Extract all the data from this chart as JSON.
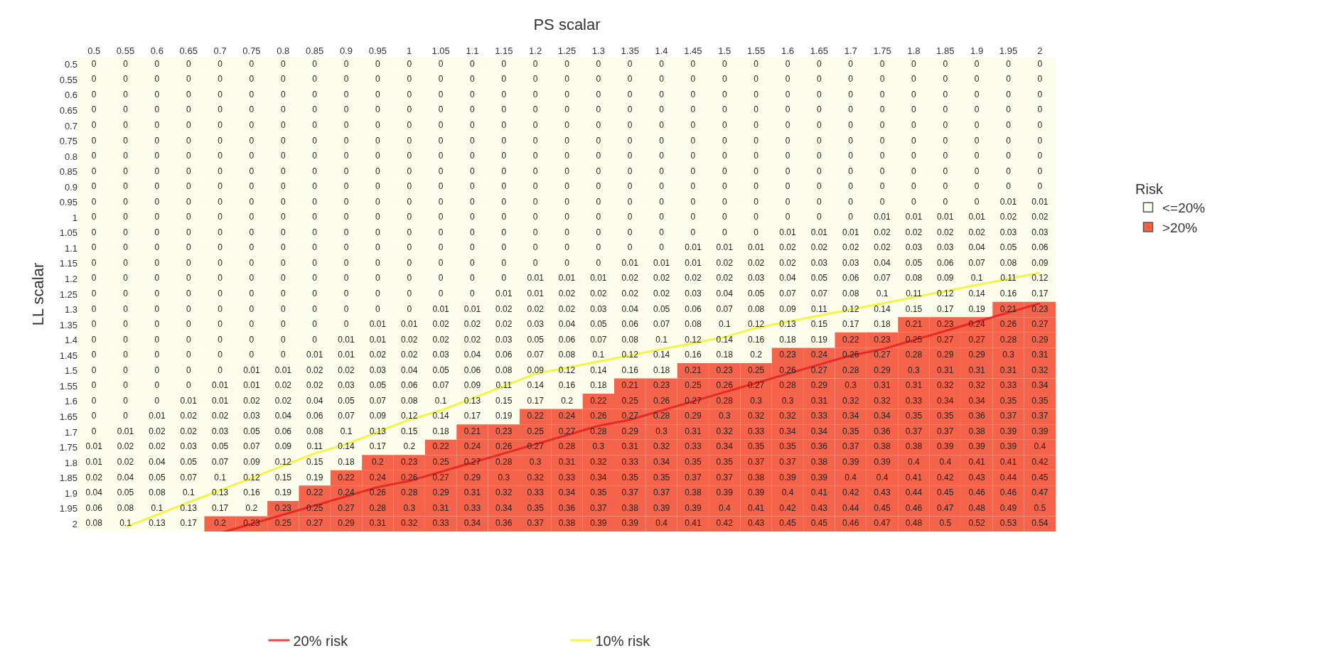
{
  "chart_data": {
    "type": "heatmap",
    "xlabel": "PS scalar",
    "ylabel": "LL scalar",
    "legend_title": "Risk",
    "legend": "bottom",
    "data_labels": true,
    "categories": [
      "0.5",
      "0.55",
      "0.6",
      "0.65",
      "0.7",
      "0.75",
      "0.8",
      "0.85",
      "0.9",
      "0.95",
      "1",
      "1.05",
      "1.1",
      "1.15",
      "1.2",
      "1.25",
      "1.3",
      "1.35",
      "1.4",
      "1.45",
      "1.5",
      "1.55",
      "1.6",
      "1.65",
      "1.7",
      "1.75",
      "1.8",
      "1.85",
      "1.9",
      "1.95",
      "2"
    ],
    "y_categories": [
      "0.5",
      "0.55",
      "0.6",
      "0.65",
      "0.7",
      "0.75",
      "0.8",
      "0.85",
      "0.9",
      "0.95",
      "1",
      "1.05",
      "1.1",
      "1.15",
      "1.2",
      "1.25",
      "1.3",
      "1.35",
      "1.4",
      "1.45",
      "1.5",
      "1.55",
      "1.6",
      "1.65",
      "1.7",
      "1.75",
      "1.8",
      "1.85",
      "1.9",
      "1.95",
      "2"
    ],
    "cells": [
      [
        0,
        0,
        0,
        0,
        0,
        0,
        0,
        0,
        0,
        0,
        0,
        0,
        0,
        0,
        0,
        0,
        0,
        0,
        0,
        0,
        0,
        0,
        0,
        0,
        0,
        0,
        0,
        0,
        0,
        0,
        0
      ],
      [
        0,
        0,
        0,
        0,
        0,
        0,
        0,
        0,
        0,
        0,
        0,
        0,
        0,
        0,
        0,
        0,
        0,
        0,
        0,
        0,
        0,
        0,
        0,
        0,
        0,
        0,
        0,
        0,
        0,
        0,
        0
      ],
      [
        0,
        0,
        0,
        0,
        0,
        0,
        0,
        0,
        0,
        0,
        0,
        0,
        0,
        0,
        0,
        0,
        0,
        0,
        0,
        0,
        0,
        0,
        0,
        0,
        0,
        0,
        0,
        0,
        0,
        0,
        0
      ],
      [
        0,
        0,
        0,
        0,
        0,
        0,
        0,
        0,
        0,
        0,
        0,
        0,
        0,
        0,
        0,
        0,
        0,
        0,
        0,
        0,
        0,
        0,
        0,
        0,
        0,
        0,
        0,
        0,
        0,
        0,
        0
      ],
      [
        0,
        0,
        0,
        0,
        0,
        0,
        0,
        0,
        0,
        0,
        0,
        0,
        0,
        0,
        0,
        0,
        0,
        0,
        0,
        0,
        0,
        0,
        0,
        0,
        0,
        0,
        0,
        0,
        0,
        0,
        0
      ],
      [
        0,
        0,
        0,
        0,
        0,
        0,
        0,
        0,
        0,
        0,
        0,
        0,
        0,
        0,
        0,
        0,
        0,
        0,
        0,
        0,
        0,
        0,
        0,
        0,
        0,
        0,
        0,
        0,
        0,
        0,
        0
      ],
      [
        0,
        0,
        0,
        0,
        0,
        0,
        0,
        0,
        0,
        0,
        0,
        0,
        0,
        0,
        0,
        0,
        0,
        0,
        0,
        0,
        0,
        0,
        0,
        0,
        0,
        0,
        0,
        0,
        0,
        0,
        0
      ],
      [
        0,
        0,
        0,
        0,
        0,
        0,
        0,
        0,
        0,
        0,
        0,
        0,
        0,
        0,
        0,
        0,
        0,
        0,
        0,
        0,
        0,
        0,
        0,
        0,
        0,
        0,
        0,
        0,
        0,
        0,
        0
      ],
      [
        0,
        0,
        0,
        0,
        0,
        0,
        0,
        0,
        0,
        0,
        0,
        0,
        0,
        0,
        0,
        0,
        0,
        0,
        0,
        0,
        0,
        0,
        0,
        0,
        0,
        0,
        0,
        0,
        0,
        0,
        0
      ],
      [
        0,
        0,
        0,
        0,
        0,
        0,
        0,
        0,
        0,
        0,
        0,
        0,
        0,
        0,
        0,
        0,
        0,
        0,
        0,
        0,
        0,
        0,
        0,
        0,
        0,
        0,
        0,
        0,
        0,
        0.01,
        0.01
      ],
      [
        0,
        0,
        0,
        0,
        0,
        0,
        0,
        0,
        0,
        0,
        0,
        0,
        0,
        0,
        0,
        0,
        0,
        0,
        0,
        0,
        0,
        0,
        0,
        0,
        0,
        0.01,
        0.01,
        0.01,
        0.01,
        0.02,
        0.02
      ],
      [
        0,
        0,
        0,
        0,
        0,
        0,
        0,
        0,
        0,
        0,
        0,
        0,
        0,
        0,
        0,
        0,
        0,
        0,
        0,
        0,
        0,
        0,
        0.01,
        0.01,
        0.01,
        0.02,
        0.02,
        0.02,
        0.02,
        0.03,
        0.03
      ],
      [
        0,
        0,
        0,
        0,
        0,
        0,
        0,
        0,
        0,
        0,
        0,
        0,
        0,
        0,
        0,
        0,
        0,
        0,
        0,
        0.01,
        0.01,
        0.01,
        0.02,
        0.02,
        0.02,
        0.02,
        0.03,
        0.03,
        0.04,
        0.05,
        0.06
      ],
      [
        0,
        0,
        0,
        0,
        0,
        0,
        0,
        0,
        0,
        0,
        0,
        0,
        0,
        0,
        0,
        0,
        0,
        0.01,
        0.01,
        0.01,
        0.02,
        0.02,
        0.02,
        0.03,
        0.03,
        0.04,
        0.05,
        0.06,
        0.07,
        0.08,
        0.09
      ],
      [
        0,
        0,
        0,
        0,
        0,
        0,
        0,
        0,
        0,
        0,
        0,
        0,
        0,
        0,
        0.01,
        0.01,
        0.01,
        0.02,
        0.02,
        0.02,
        0.02,
        0.03,
        0.04,
        0.05,
        0.06,
        0.07,
        0.08,
        0.09,
        0.1,
        0.11,
        0.12
      ],
      [
        0,
        0,
        0,
        0,
        0,
        0,
        0,
        0,
        0,
        0,
        0,
        0,
        0,
        0.01,
        0.01,
        0.02,
        0.02,
        0.02,
        0.02,
        0.03,
        0.04,
        0.05,
        0.07,
        0.07,
        0.08,
        0.1,
        0.11,
        0.12,
        0.14,
        0.16,
        0.17
      ],
      [
        0,
        0,
        0,
        0,
        0,
        0,
        0,
        0,
        0,
        0,
        0,
        0.01,
        0.01,
        0.02,
        0.02,
        0.02,
        0.03,
        0.04,
        0.05,
        0.06,
        0.07,
        0.08,
        0.09,
        0.11,
        0.12,
        0.14,
        0.15,
        0.17,
        0.19,
        0.21,
        0.23
      ],
      [
        0,
        0,
        0,
        0,
        0,
        0,
        0,
        0,
        0,
        0.01,
        0.01,
        0.02,
        0.02,
        0.02,
        0.03,
        0.04,
        0.05,
        0.06,
        0.07,
        0.08,
        0.1,
        0.12,
        0.13,
        0.15,
        0.17,
        0.18,
        0.21,
        0.23,
        0.24,
        0.26,
        0.27
      ],
      [
        0,
        0,
        0,
        0,
        0,
        0,
        0,
        0,
        0.01,
        0.01,
        0.02,
        0.02,
        0.02,
        0.03,
        0.05,
        0.06,
        0.07,
        0.08,
        0.1,
        0.12,
        0.14,
        0.16,
        0.18,
        0.19,
        0.22,
        0.23,
        0.25,
        0.27,
        0.27,
        0.28,
        0.29
      ],
      [
        0,
        0,
        0,
        0,
        0,
        0,
        0,
        0.01,
        0.01,
        0.02,
        0.02,
        0.03,
        0.04,
        0.06,
        0.07,
        0.08,
        0.1,
        0.12,
        0.14,
        0.16,
        0.18,
        0.2,
        0.23,
        0.24,
        0.26,
        0.27,
        0.28,
        0.29,
        0.29,
        0.3,
        0.31
      ],
      [
        0,
        0,
        0,
        0,
        0,
        0.01,
        0.01,
        0.02,
        0.02,
        0.03,
        0.04,
        0.05,
        0.06,
        0.08,
        0.09,
        0.12,
        0.14,
        0.16,
        0.18,
        0.21,
        0.23,
        0.25,
        0.26,
        0.27,
        0.28,
        0.29,
        0.3,
        0.31,
        0.31,
        0.31,
        0.32
      ],
      [
        0,
        0,
        0,
        0,
        0.01,
        0.01,
        0.02,
        0.02,
        0.03,
        0.05,
        0.06,
        0.07,
        0.09,
        0.11,
        0.14,
        0.16,
        0.18,
        0.21,
        0.23,
        0.25,
        0.26,
        0.27,
        0.28,
        0.29,
        0.3,
        0.31,
        0.31,
        0.32,
        0.32,
        0.33,
        0.34
      ],
      [
        0,
        0,
        0,
        0.01,
        0.01,
        0.02,
        0.02,
        0.04,
        0.05,
        0.07,
        0.08,
        0.1,
        0.13,
        0.15,
        0.17,
        0.2,
        0.22,
        0.25,
        0.26,
        0.27,
        0.28,
        0.3,
        0.3,
        0.31,
        0.32,
        0.32,
        0.33,
        0.34,
        0.34,
        0.35,
        0.35
      ],
      [
        0,
        0,
        0.01,
        0.02,
        0.02,
        0.03,
        0.04,
        0.06,
        0.07,
        0.09,
        0.12,
        0.14,
        0.17,
        0.19,
        0.22,
        0.24,
        0.26,
        0.27,
        0.28,
        0.29,
        0.3,
        0.32,
        0.32,
        0.33,
        0.34,
        0.34,
        0.35,
        0.35,
        0.36,
        0.37,
        0.37
      ],
      [
        0,
        0.01,
        0.02,
        0.02,
        0.03,
        0.05,
        0.06,
        0.08,
        0.1,
        0.13,
        0.15,
        0.18,
        0.21,
        0.23,
        0.25,
        0.27,
        0.28,
        0.29,
        0.3,
        0.31,
        0.32,
        0.33,
        0.34,
        0.34,
        0.35,
        0.36,
        0.37,
        0.37,
        0.38,
        0.39,
        0.39
      ],
      [
        0.01,
        0.02,
        0.02,
        0.03,
        0.05,
        0.07,
        0.09,
        0.11,
        0.14,
        0.17,
        0.2,
        0.22,
        0.24,
        0.26,
        0.27,
        0.28,
        0.3,
        0.31,
        0.32,
        0.33,
        0.34,
        0.35,
        0.35,
        0.36,
        0.37,
        0.38,
        0.38,
        0.39,
        0.39,
        0.39,
        0.4
      ],
      [
        0.01,
        0.02,
        0.04,
        0.05,
        0.07,
        0.09,
        0.12,
        0.15,
        0.18,
        0.2,
        0.23,
        0.25,
        0.27,
        0.28,
        0.3,
        0.31,
        0.32,
        0.33,
        0.34,
        0.35,
        0.35,
        0.37,
        0.37,
        0.38,
        0.39,
        0.39,
        0.4,
        0.4,
        0.41,
        0.41,
        0.42
      ],
      [
        0.02,
        0.04,
        0.05,
        0.07,
        0.1,
        0.12,
        0.15,
        0.19,
        0.22,
        0.24,
        0.26,
        0.27,
        0.29,
        0.3,
        0.32,
        0.33,
        0.34,
        0.35,
        0.35,
        0.37,
        0.37,
        0.38,
        0.39,
        0.39,
        0.4,
        0.4,
        0.41,
        0.42,
        0.43,
        0.44,
        0.45
      ],
      [
        0.04,
        0.05,
        0.08,
        0.1,
        0.13,
        0.16,
        0.19,
        0.22,
        0.24,
        0.26,
        0.28,
        0.29,
        0.31,
        0.32,
        0.33,
        0.34,
        0.35,
        0.37,
        0.37,
        0.38,
        0.39,
        0.39,
        0.4,
        0.41,
        0.42,
        0.43,
        0.44,
        0.45,
        0.46,
        0.46,
        0.47
      ],
      [
        0.06,
        0.08,
        0.1,
        0.13,
        0.17,
        0.2,
        0.23,
        0.25,
        0.27,
        0.28,
        0.3,
        0.31,
        0.33,
        0.34,
        0.35,
        0.36,
        0.37,
        0.38,
        0.39,
        0.39,
        0.4,
        0.41,
        0.42,
        0.43,
        0.44,
        0.45,
        0.46,
        0.47,
        0.48,
        0.49,
        0.5
      ],
      [
        0.08,
        0.1,
        0.13,
        0.17,
        0.2,
        0.23,
        0.25,
        0.27,
        0.29,
        0.31,
        0.32,
        0.33,
        0.34,
        0.36,
        0.37,
        0.38,
        0.39,
        0.39,
        0.4,
        0.41,
        0.42,
        0.43,
        0.45,
        0.45,
        0.46,
        0.47,
        0.48,
        0.5,
        0.52,
        0.53,
        0.54
      ]
    ],
    "colors": [
      [
        "#fdfdeb",
        "#fdfdeb",
        "#fdfdeb",
        "#fdfdeb",
        "#fdfdeb",
        "#fdfdeb",
        "#fdfdeb",
        "#fdfdeb",
        "#fdfdeb",
        "#fdfdeb",
        "#fdfdeb",
        "#fdfdeb",
        "#fdfdeb",
        "#fdfdeb",
        "#fdfdeb",
        "#fdfdeb",
        "#fdfdeb",
        "#fdfdeb",
        "#fdfdeb",
        "#fdfdeb",
        "#fdfdeb",
        "#fdfdeb",
        "#fdfdeb",
        "#fdfdeb",
        "#fdfdeb",
        "#fdfdeb",
        "#fdfdeb",
        "#fdfdeb",
        "#fdfdeb",
        "#fdfdeb",
        "#fdfdeb"
      ],
      [
        "#fdfdeb",
        "#fdfdeb",
        "#fdfdeb",
        "#fdfdeb",
        "#fdfdeb",
        "#fdfdeb",
        "#fdfdeb",
        "#fdfdeb",
        "#fdfdeb",
        "#fdfdeb",
        "#fdfdeb",
        "#fdfdeb",
        "#fdfdeb",
        "#fdfdeb",
        "#fdfdeb",
        "#fdfdeb",
        "#fdfdeb",
        "#fdfdeb",
        "#fdfdeb",
        "#fdfdeb",
        "#fdfdeb",
        "#fdfdeb",
        "#fdfdeb",
        "#fdfdeb",
        "#fdfdeb",
        "#fdfdeb",
        "#fdfdeb",
        "#fdfdeb",
        "#fdfdeb",
        "#fdfdeb",
        "#fdfdeb"
      ],
      [
        "#fdfdeb",
        "#fdfdeb",
        "#fdfdeb",
        "#fdfdeb",
        "#fdfdeb",
        "#fdfdeb",
        "#fdfdeb",
        "#fdfdeb",
        "#fdfdeb",
        "#fdfdeb",
        "#fdfdeb",
        "#fdfdeb",
        "#fdfdeb",
        "#fdfdeb",
        "#fdfdeb",
        "#fdfdeb",
        "#fdfdeb",
        "#fdfdeb",
        "#fdfdeb",
        "#fdfdeb",
        "#fdfdeb",
        "#fdfdeb",
        "#fdfdeb",
        "#fdfdeb",
        "#fdfdeb",
        "#fdfdeb",
        "#fdfdeb",
        "#fdfdeb",
        "#fdfdeb",
        "#fdfdeb",
        "#fdfdeb"
      ],
      [
        "#fdfdeb",
        "#fdfdeb",
        "#fdfdeb",
        "#fdfdeb",
        "#fdfdeb",
        "#fdfdeb",
        "#fdfdeb",
        "#fdfdeb",
        "#fdfdeb",
        "#fdfdeb",
        "#fdfdeb",
        "#fdfdeb",
        "#fdfdeb",
        "#fdfdeb",
        "#fdfdeb",
        "#fdfdeb",
        "#fdfdeb",
        "#fdfdeb",
        "#fdfdeb",
        "#fdfdeb",
        "#fdfdeb",
        "#fdfdeb",
        "#fdfdeb",
        "#fdfdeb",
        "#fdfdeb",
        "#fdfdeb",
        "#fdfdeb",
        "#fdfdeb",
        "#fdfdeb",
        "#fdfdeb",
        "#fdfdeb"
      ],
      [
        "#fdfdeb",
        "#fdfdeb",
        "#fdfdeb",
        "#fdfdeb",
        "#fdfdeb",
        "#fdfdeb",
        "#fdfdeb",
        "#fdfdeb",
        "#fdfdeb",
        "#fdfdeb",
        "#fdfdeb",
        "#fdfdeb",
        "#fdfdeb",
        "#fdfdeb",
        "#fdfdeb",
        "#fdfdeb",
        "#fdfdeb",
        "#fdfdeb",
        "#fdfdeb",
        "#fdfdeb",
        "#fdfdeb",
        "#fdfdeb",
        "#fdfdeb",
        "#fdfdeb",
        "#fdfdeb",
        "#fdfdeb",
        "#fdfdeb",
        "#fdfdeb",
        "#fdfdeb",
        "#fdfdeb",
        "#fdfdeb"
      ],
      [
        "#fdfdeb",
        "#fdfdeb",
        "#fdfdeb",
        "#fdfdeb",
        "#fdfdeb",
        "#fdfdeb",
        "#fdfdeb",
        "#fdfdeb",
        "#fdfdeb",
        "#fdfdeb",
        "#fdfdeb",
        "#fdfdeb",
        "#fdfdeb",
        "#fdfdeb",
        "#fdfdeb",
        "#fdfdeb",
        "#fdfdeb",
        "#fdfdeb",
        "#fdfdeb",
        "#fdfdeb",
        "#fdfdeb",
        "#fdfdeb",
        "#fdfdeb",
        "#fdfdeb",
        "#fdfdeb",
        "#fdfdeb",
        "#fdfdeb",
        "#fdfdeb",
        "#fdfdeb",
        "#fdfdeb",
        "#fdfdeb"
      ],
      [
        "#fdfdeb",
        "#fdfdeb",
        "#fdfdeb",
        "#fdfdeb",
        "#fdfdeb",
        "#fdfdeb",
        "#fdfdeb",
        "#fdfdeb",
        "#fdfdeb",
        "#fdfdeb",
        "#fdfdeb",
        "#fdfdeb",
        "#fdfdeb",
        "#fdfdeb",
        "#fdfdeb",
        "#fdfdeb",
        "#fdfdeb",
        "#fdfdeb",
        "#fdfdeb",
        "#fdfdeb",
        "#fdfdeb",
        "#fdfdeb",
        "#fdfdeb",
        "#fdfdeb",
        "#fdfdeb",
        "#fdfdeb",
        "#fdfdeb",
        "#fdfdeb",
        "#fdfdeb",
        "#fdfdeb",
        "#fdfdeb"
      ],
      [
        "#fdfdeb",
        "#fdfdeb",
        "#fdfdeb",
        "#fdfdeb",
        "#fdfdeb",
        "#fdfdeb",
        "#fdfdeb",
        "#fdfdeb",
        "#fdfdeb",
        "#fdfdeb",
        "#fdfdeb",
        "#fdfdeb",
        "#fdfdeb",
        "#fdfdeb",
        "#fdfdeb",
        "#fdfdeb",
        "#fdfdeb",
        "#fdfdeb",
        "#fdfdeb",
        "#fdfdeb",
        "#fdfdeb",
        "#fdfdeb",
        "#fdfdeb",
        "#fdfdeb",
        "#fdfdeb",
        "#fdfdeb",
        "#fdfdeb",
        "#fdfdeb",
        "#fdfdeb",
        "#fdfdeb",
        "#fdfdeb"
      ],
      [
        "#fdfdeb",
        "#fdfdeb",
        "#fdfdeb",
        "#fdfdeb",
        "#fdfdeb",
        "#fdfdeb",
        "#fdfdeb",
        "#fdfdeb",
        "#fdfdeb",
        "#fdfdeb",
        "#fdfdeb",
        "#fdfdeb",
        "#fdfdeb",
        "#fdfdeb",
        "#fdfdeb",
        "#fdfdeb",
        "#fdfdeb",
        "#fdfdeb",
        "#fdfdeb",
        "#fdfdeb",
        "#fdfdeb",
        "#fdfdeb",
        "#fdfdeb",
        "#fdfdeb",
        "#fdfdeb",
        "#fdfdeb",
        "#fdfdeb",
        "#fdfdeb",
        "#fdfdeb",
        "#fdfdeb",
        "#fdfdeb"
      ],
      [
        "#fdfdeb",
        "#fdfdeb",
        "#fdfdeb",
        "#fdfdeb",
        "#fdfdeb",
        "#fdfdeb",
        "#fdfdeb",
        "#fdfdeb",
        "#fdfdeb",
        "#fdfdeb",
        "#fdfdeb",
        "#fdfdeb",
        "#fdfdeb",
        "#fdfdeb",
        "#fdfdeb",
        "#fdfdeb",
        "#fdfdeb",
        "#fdfdeb",
        "#fdfdeb",
        "#fdfdeb",
        "#fdfdeb",
        "#fdfdeb",
        "#fdfdeb",
        "#fdfdeb",
        "#fdfdeb",
        "#fdfdeb",
        "#fdfdeb",
        "#fdfdeb",
        "#fdfdeb",
        "#fdfdeb",
        "#fdfdeb"
      ],
      [
        "#fdfdeb",
        "#fdfdeb",
        "#fdfdeb",
        "#fdfdeb",
        "#fdfdeb",
        "#fdfdeb",
        "#fdfdeb",
        "#fdfdeb",
        "#fdfdeb",
        "#fdfdeb",
        "#fdfdeb",
        "#fdfdeb",
        "#fdfdeb",
        "#fdfdeb",
        "#fdfdeb",
        "#fdfdeb",
        "#fdfdeb",
        "#fdfdeb",
        "#fdfdeb",
        "#fdfdeb",
        "#fdfdeb",
        "#fdfdeb",
        "#fdfdeb",
        "#fdfdeb",
        "#fdfdeb",
        "#fdfdeb",
        "#fdfdeb",
        "#fdfdeb",
        "#fdfdeb",
        "#fdfdeb",
        "#fdfdeb"
      ],
      [
        "#fdfdeb",
        "#fdfdeb",
        "#fdfdeb",
        "#fdfdeb",
        "#fdfdeb",
        "#fdfdeb",
        "#fdfdeb",
        "#fdfdeb",
        "#fdfdeb",
        "#fdfdeb",
        "#fdfdeb",
        "#fdfdeb",
        "#fdfdeb",
        "#fdfdeb",
        "#fdfdeb",
        "#fdfdeb",
        "#fdfdeb",
        "#fdfdeb",
        "#fdfdeb",
        "#fdfdeb",
        "#fdfdeb",
        "#fdfdeb",
        "#fdfdeb",
        "#fdfdeb",
        "#fdfdeb",
        "#fdfdeb",
        "#fdfdeb",
        "#fdfdeb",
        "#fdfdeb",
        "#fdfdeb",
        "#fdfdeb"
      ],
      [
        "#fdfdeb",
        "#fdfdeb",
        "#fdfdeb",
        "#fdfdeb",
        "#fdfdeb",
        "#fdfdeb",
        "#fdfdeb",
        "#fdfdeb",
        "#fdfdeb",
        "#fdfdeb",
        "#fdfdeb",
        "#fdfdeb",
        "#fdfdeb",
        "#fdfdeb",
        "#fdfdeb",
        "#fdfdeb",
        "#fdfdeb",
        "#fdfdeb",
        "#fdfdeb",
        "#fdfdeb",
        "#fdfdeb",
        "#fdfdeb",
        "#fdfdeb",
        "#fdfdeb",
        "#fdfdeb",
        "#fdfdeb",
        "#fdfdeb",
        "#fdfdeb",
        "#fdfdeb",
        "#fdfdeb",
        "#fdfdeb"
      ],
      [
        "#fdfdeb",
        "#fdfdeb",
        "#fdfdeb",
        "#fdfdeb",
        "#fdfdeb",
        "#fdfdeb",
        "#fdfdeb",
        "#fdfdeb",
        "#fdfdeb",
        "#fdfdeb",
        "#fdfdeb",
        "#fdfdeb",
        "#fdfdeb",
        "#fdfdeb",
        "#fdfdeb",
        "#fdfdeb",
        "#fdfdeb",
        "#fdfdeb",
        "#fdfdeb",
        "#fdfdeb",
        "#fdfdeb",
        "#fdfdeb",
        "#fdfdeb",
        "#fdfdeb",
        "#fdfdeb",
        "#fdfdeb",
        "#fdfdeb",
        "#fdfdeb",
        "#fdfdeb",
        "#fdfdeb",
        "#fdfdeb"
      ],
      [
        "#fdfdeb",
        "#fdfdeb",
        "#fdfdeb",
        "#fdfdeb",
        "#fdfdeb",
        "#fdfdeb",
        "#fdfdeb",
        "#fdfdeb",
        "#fdfdeb",
        "#fdfdeb",
        "#fdfdeb",
        "#fdfdeb",
        "#fdfdeb",
        "#fdfdeb",
        "#fdfdeb",
        "#fdfdeb",
        "#fdfdeb",
        "#fdfdeb",
        "#fdfdeb",
        "#fdfdeb",
        "#fdfdeb",
        "#fdfdeb",
        "#fdfdeb",
        "#fdfdeb",
        "#fdfdeb",
        "#fdfdeb",
        "#fdfdeb",
        "#fdfdeb",
        "#fdfdeb",
        "#fdfdeb",
        "#fdfdeb"
      ],
      [
        "#fdfdeb",
        "#fdfdeb",
        "#fdfdeb",
        "#fdfdeb",
        "#fdfdeb",
        "#fdfdeb",
        "#fdfdeb",
        "#fdfdeb",
        "#fdfdeb",
        "#fdfdeb",
        "#fdfdeb",
        "#fdfdeb",
        "#fdfdeb",
        "#fdfdeb",
        "#fdfdeb",
        "#fdfdeb",
        "#fdfdeb",
        "#fdfdeb",
        "#fdfdeb",
        "#fdfdeb",
        "#fdfdeb",
        "#fdfdeb",
        "#fdfdeb",
        "#fdfdeb",
        "#fdfdeb",
        "#fdfdeb",
        "#fdfdeb",
        "#fdfdeb",
        "#fdfdeb",
        "#fdfdeb",
        "#fdfdeb"
      ],
      [
        "#fdfdeb",
        "#fdfdeb",
        "#fdfdeb",
        "#fdfdeb",
        "#fdfdeb",
        "#fdfdeb",
        "#fdfdeb",
        "#fdfdeb",
        "#fdfdeb",
        "#fdfdeb",
        "#fdfdeb",
        "#fdfdeb",
        "#fdfdeb",
        "#fdfdeb",
        "#fdfdeb",
        "#fdfdeb",
        "#fdfdeb",
        "#fdfdeb",
        "#fdfdeb",
        "#fdfdeb",
        "#fdfdeb",
        "#fdfdeb",
        "#fdfdeb",
        "#fdfdeb",
        "#fdfdeb",
        "#fdfdeb",
        "#fdfdeb",
        "#fdfdeb",
        "#fdfdeb",
        "#f4634a",
        "#f4634a"
      ],
      [
        "#fdfdeb",
        "#fdfdeb",
        "#fdfdeb",
        "#fdfdeb",
        "#fdfdeb",
        "#fdfdeb",
        "#fdfdeb",
        "#fdfdeb",
        "#fdfdeb",
        "#fdfdeb",
        "#fdfdeb",
        "#fdfdeb",
        "#fdfdeb",
        "#fdfdeb",
        "#fdfdeb",
        "#fdfdeb",
        "#fdfdeb",
        "#fdfdeb",
        "#fdfdeb",
        "#fdfdeb",
        "#fdfdeb",
        "#fdfdeb",
        "#fdfdeb",
        "#fdfdeb",
        "#fdfdeb",
        "#fdfdeb",
        "#f4634a",
        "#f4634a",
        "#f4634a",
        "#f4634a",
        "#f4634a"
      ],
      [
        "#fdfdeb",
        "#fdfdeb",
        "#fdfdeb",
        "#fdfdeb",
        "#fdfdeb",
        "#fdfdeb",
        "#fdfdeb",
        "#fdfdeb",
        "#fdfdeb",
        "#fdfdeb",
        "#fdfdeb",
        "#fdfdeb",
        "#fdfdeb",
        "#fdfdeb",
        "#fdfdeb",
        "#fdfdeb",
        "#fdfdeb",
        "#fdfdeb",
        "#fdfdeb",
        "#fdfdeb",
        "#fdfdeb",
        "#fdfdeb",
        "#fdfdeb",
        "#fdfdeb",
        "#f4634a",
        "#f4634a",
        "#f4634a",
        "#f4634a",
        "#f4634a",
        "#f4634a",
        "#f4634a"
      ],
      [
        "#fdfdeb",
        "#fdfdeb",
        "#fdfdeb",
        "#fdfdeb",
        "#fdfdeb",
        "#fdfdeb",
        "#fdfdeb",
        "#fdfdeb",
        "#fdfdeb",
        "#fdfdeb",
        "#fdfdeb",
        "#fdfdeb",
        "#fdfdeb",
        "#fdfdeb",
        "#fdfdeb",
        "#fdfdeb",
        "#fdfdeb",
        "#fdfdeb",
        "#fdfdeb",
        "#fdfdeb",
        "#fdfdeb",
        "#fdfdeb",
        "#f4634a",
        "#f4634a",
        "#f4634a",
        "#f4634a",
        "#f4634a",
        "#f4634a",
        "#f4634a",
        "#f4634a",
        "#f4634a"
      ],
      [
        "#fdfdeb",
        "#fdfdeb",
        "#fdfdeb",
        "#fdfdeb",
        "#fdfdeb",
        "#fdfdeb",
        "#fdfdeb",
        "#fdfdeb",
        "#fdfdeb",
        "#fdfdeb",
        "#fdfdeb",
        "#fdfdeb",
        "#fdfdeb",
        "#fdfdeb",
        "#fdfdeb",
        "#fdfdeb",
        "#fdfdeb",
        "#fdfdeb",
        "#fdfdeb",
        "#f4634a",
        "#f4634a",
        "#f4634a",
        "#f4634a",
        "#f4634a",
        "#f4634a",
        "#f4634a",
        "#f4634a",
        "#f4634a",
        "#f4634a",
        "#f4634a",
        "#f4634a"
      ],
      [
        "#fdfdeb",
        "#fdfdeb",
        "#fdfdeb",
        "#fdfdeb",
        "#fdfdeb",
        "#fdfdeb",
        "#fdfdeb",
        "#fdfdeb",
        "#fdfdeb",
        "#fdfdeb",
        "#fdfdeb",
        "#fdfdeb",
        "#fdfdeb",
        "#fdfdeb",
        "#fdfdeb",
        "#fdfdeb",
        "#fdfdeb",
        "#f4634a",
        "#f4634a",
        "#f4634a",
        "#f4634a",
        "#f4634a",
        "#f4634a",
        "#f4634a",
        "#f4634a",
        "#f4634a",
        "#f4634a",
        "#f4634a",
        "#f4634a",
        "#f4634a",
        "#f4634a"
      ],
      [
        "#fdfdeb",
        "#fdfdeb",
        "#fdfdeb",
        "#fdfdeb",
        "#fdfdeb",
        "#fdfdeb",
        "#fdfdeb",
        "#fdfdeb",
        "#fdfdeb",
        "#fdfdeb",
        "#fdfdeb",
        "#fdfdeb",
        "#fdfdeb",
        "#fdfdeb",
        "#fdfdeb",
        "#fdfdeb",
        "#f4634a",
        "#f4634a",
        "#f4634a",
        "#f4634a",
        "#f4634a",
        "#f4634a",
        "#f4634a",
        "#f4634a",
        "#f4634a",
        "#f4634a",
        "#f4634a",
        "#f4634a",
        "#f4634a",
        "#f4634a",
        "#f4634a"
      ],
      [
        "#fdfdeb",
        "#fdfdeb",
        "#fdfdeb",
        "#fdfdeb",
        "#fdfdeb",
        "#fdfdeb",
        "#fdfdeb",
        "#fdfdeb",
        "#fdfdeb",
        "#fdfdeb",
        "#fdfdeb",
        "#fdfdeb",
        "#fdfdeb",
        "#fdfdeb",
        "#f4634a",
        "#f4634a",
        "#f4634a",
        "#f4634a",
        "#f4634a",
        "#f4634a",
        "#f4634a",
        "#f4634a",
        "#f4634a",
        "#f4634a",
        "#f4634a",
        "#f4634a",
        "#f4634a",
        "#f4634a",
        "#f4634a",
        "#f4634a",
        "#f4634a"
      ],
      [
        "#fdfdeb",
        "#fdfdeb",
        "#fdfdeb",
        "#fdfdeb",
        "#fdfdeb",
        "#fdfdeb",
        "#fdfdeb",
        "#fdfdeb",
        "#fdfdeb",
        "#fdfdeb",
        "#fdfdeb",
        "#fdfdeb",
        "#f4634a",
        "#f4634a",
        "#f4634a",
        "#f4634a",
        "#f4634a",
        "#f4634a",
        "#f4634a",
        "#f4634a",
        "#f4634a",
        "#f4634a",
        "#f4634a",
        "#f4634a",
        "#f4634a",
        "#f4634a",
        "#f4634a",
        "#f4634a",
        "#f4634a",
        "#f4634a",
        "#f4634a"
      ],
      [
        "#fdfdeb",
        "#fdfdeb",
        "#fdfdeb",
        "#fdfdeb",
        "#fdfdeb",
        "#fdfdeb",
        "#fdfdeb",
        "#fdfdeb",
        "#fdfdeb",
        "#fdfdeb",
        "#fdfdeb",
        "#f4634a",
        "#f4634a",
        "#f4634a",
        "#f4634a",
        "#f4634a",
        "#f4634a",
        "#f4634a",
        "#f4634a",
        "#f4634a",
        "#f4634a",
        "#f4634a",
        "#f4634a",
        "#f4634a",
        "#f4634a",
        "#f4634a",
        "#f4634a",
        "#f4634a",
        "#f4634a",
        "#f4634a",
        "#f4634a"
      ],
      [
        "#fdfdeb",
        "#fdfdeb",
        "#fdfdeb",
        "#fdfdeb",
        "#fdfdeb",
        "#fdfdeb",
        "#fdfdeb",
        "#fdfdeb",
        "#fdfdeb",
        "#f4634a",
        "#f4634a",
        "#f4634a",
        "#f4634a",
        "#f4634a",
        "#f4634a",
        "#f4634a",
        "#f4634a",
        "#f4634a",
        "#f4634a",
        "#f4634a",
        "#f4634a",
        "#f4634a",
        "#f4634a",
        "#f4634a",
        "#f4634a",
        "#f4634a",
        "#f4634a",
        "#f4634a",
        "#f4634a",
        "#f4634a",
        "#f4634a"
      ],
      [
        "#fdfdeb",
        "#fdfdeb",
        "#fdfdeb",
        "#fdfdeb",
        "#fdfdeb",
        "#fdfdeb",
        "#fdfdeb",
        "#fdfdeb",
        "#f4634a",
        "#f4634a",
        "#f4634a",
        "#f4634a",
        "#f4634a",
        "#f4634a",
        "#f4634a",
        "#f4634a",
        "#f4634a",
        "#f4634a",
        "#f4634a",
        "#f4634a",
        "#f4634a",
        "#f4634a",
        "#f4634a",
        "#f4634a",
        "#f4634a",
        "#f4634a",
        "#f4634a",
        "#f4634a",
        "#f4634a",
        "#f4634a",
        "#f4634a"
      ],
      [
        "#fdfdeb",
        "#fdfdeb",
        "#fdfdeb",
        "#fdfdeb",
        "#fdfdeb",
        "#fdfdeb",
        "#fdfdeb",
        "#f4634a",
        "#f4634a",
        "#f4634a",
        "#f4634a",
        "#f4634a",
        "#f4634a",
        "#f4634a",
        "#f4634a",
        "#f4634a",
        "#f4634a",
        "#f4634a",
        "#f4634a",
        "#f4634a",
        "#f4634a",
        "#f4634a",
        "#f4634a",
        "#f4634a",
        "#f4634a",
        "#f4634a",
        "#f4634a",
        "#f4634a",
        "#f4634a",
        "#f4634a",
        "#f4634a"
      ],
      [
        "#fdfdeb",
        "#fdfdeb",
        "#fdfdeb",
        "#fdfdeb",
        "#fdfdeb",
        "#fdfdeb",
        "#f4634a",
        "#f4634a",
        "#f4634a",
        "#f4634a",
        "#f4634a",
        "#f4634a",
        "#f4634a",
        "#f4634a",
        "#f4634a",
        "#f4634a",
        "#f4634a",
        "#f4634a",
        "#f4634a",
        "#f4634a",
        "#f4634a",
        "#f4634a",
        "#f4634a",
        "#f4634a",
        "#f4634a",
        "#f4634a",
        "#f4634a",
        "#f4634a",
        "#f4634a",
        "#f4634a",
        "#f4634a"
      ],
      [
        "#fdfdeb",
        "#fdfdeb",
        "#fdfdeb",
        "#fdfdeb",
        "#f4634a",
        "#f4634a",
        "#f4634a",
        "#f4634a",
        "#f4634a",
        "#f4634a",
        "#f4634a",
        "#f4634a",
        "#f4634a",
        "#f4634a",
        "#f4634a",
        "#f4634a",
        "#f4634a",
        "#f4634a",
        "#f4634a",
        "#f4634a",
        "#f4634a",
        "#f4634a",
        "#f4634a",
        "#f4634a",
        "#f4634a",
        "#f4634a",
        "#f4634a",
        "#f4634a",
        "#f4634a",
        "#f4634a",
        "#f4634a"
      ]
    ],
    "series": [
      {
        "type": "heatmap",
        "name": "<=20%",
        "color": "#fdfdeb",
        "values": [
          null,
          null,
          null,
          null,
          null,
          null,
          null,
          null,
          null,
          null,
          null,
          null,
          null,
          null,
          null,
          null,
          null,
          null,
          null,
          null,
          null,
          null,
          null,
          null,
          null,
          null,
          null,
          null,
          null,
          null,
          null
        ]
      },
      {
        "type": "heatmap",
        "name": ">20%",
        "color": "#f4634a",
        "values": [
          null,
          null,
          null,
          null,
          null,
          null,
          null,
          null,
          null,
          null,
          null,
          null,
          null,
          null,
          null,
          null,
          null,
          null,
          null,
          null,
          null,
          null,
          null,
          null,
          null,
          null,
          null,
          null,
          null,
          null,
          null
        ]
      },
      {
        "type": "line",
        "name": "20% risk",
        "color": "#e41a1c",
        "values": [
          null,
          null,
          null,
          null,
          30.6,
          30,
          29.4,
          28.8,
          28.2,
          27.6,
          27.2,
          26.6,
          26,
          25.4,
          24.8,
          24.2,
          23.6,
          23.2,
          22.6,
          22,
          21.4,
          20.8,
          20.2,
          19.6,
          19,
          18.6,
          18,
          17.4,
          16.8,
          16.2,
          15.6
        ],
        "value_labels": [
          null,
          null,
          null,
          null,
          null,
          null,
          null,
          null,
          null,
          null,
          null,
          null,
          null,
          null,
          null,
          null,
          null,
          null,
          null,
          null,
          null,
          null,
          null,
          null,
          null,
          null,
          null,
          null,
          null,
          null,
          null
        ]
      },
      {
        "type": "line",
        "name": "10% risk",
        "color": "#f2f21a",
        "values": [
          null,
          30.2,
          29.4,
          28.6,
          27.8,
          27,
          26.2,
          25.4,
          24.8,
          24,
          23.2,
          22.6,
          21.8,
          21,
          20.2,
          19.8,
          19.4,
          19,
          18.6,
          18.2,
          17.8,
          17.2,
          16.8,
          16.4,
          16,
          15.6,
          15.2,
          14.8,
          14.4,
          14,
          13.6
        ],
        "value_labels": [
          null,
          null,
          null,
          null,
          null,
          null,
          null,
          null,
          null,
          null,
          null,
          null,
          null,
          null,
          null,
          null,
          null,
          null,
          null,
          null,
          null,
          null,
          null,
          null,
          null,
          null,
          null,
          null,
          null,
          null,
          null
        ]
      }
    ]
  }
}
